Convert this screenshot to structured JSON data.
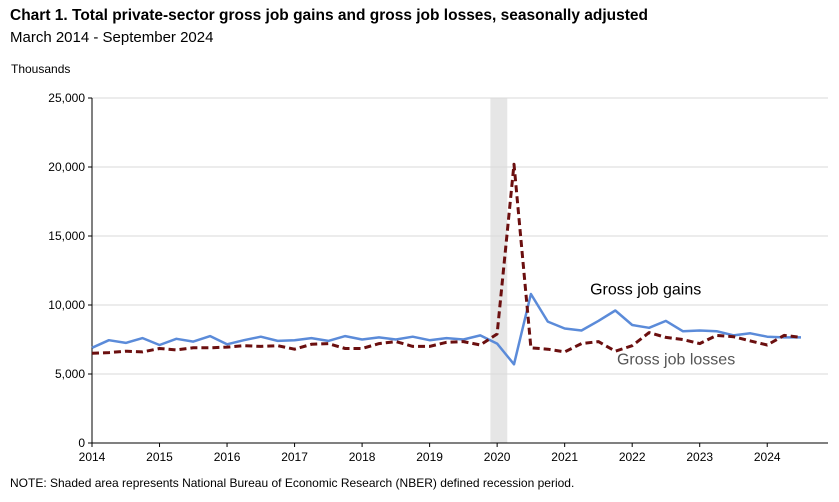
{
  "title": "Chart 1. Total private-sector gross job gains and gross job losses, seasonally adjusted",
  "subtitle": "March 2014 - September 2024",
  "note": "NOTE: Shaded area represents National Bureau of Economic Research (NBER) defined recession period.",
  "chart_data": {
    "type": "line",
    "ylabel": "Thousands",
    "ylim": [
      0,
      25000
    ],
    "yticks": [
      {
        "value": 0,
        "label": "0"
      },
      {
        "value": 5000,
        "label": "5,000"
      },
      {
        "value": 10000,
        "label": "10,000"
      },
      {
        "value": 15000,
        "label": "15,000"
      },
      {
        "value": 20000,
        "label": "20,000"
      },
      {
        "value": 25000,
        "label": "25,000"
      }
    ],
    "xlim": [
      2014.0,
      2024.9
    ],
    "xticks": [
      {
        "value": 2014,
        "label": "2014"
      },
      {
        "value": 2015,
        "label": "2015"
      },
      {
        "value": 2016,
        "label": "2016"
      },
      {
        "value": 2017,
        "label": "2017"
      },
      {
        "value": 2018,
        "label": "2018"
      },
      {
        "value": 2019,
        "label": "2019"
      },
      {
        "value": 2020,
        "label": "2020"
      },
      {
        "value": 2021,
        "label": "2021"
      },
      {
        "value": 2022,
        "label": "2022"
      },
      {
        "value": 2023,
        "label": "2023"
      },
      {
        "value": 2024,
        "label": "2024"
      }
    ],
    "grid": true,
    "recession": {
      "start": 2019.9,
      "end": 2020.15,
      "color": "#e6e6e6"
    },
    "x": [
      2014.0,
      2014.25,
      2014.5,
      2014.75,
      2015.0,
      2015.25,
      2015.5,
      2015.75,
      2016.0,
      2016.25,
      2016.5,
      2016.75,
      2017.0,
      2017.25,
      2017.5,
      2017.75,
      2018.0,
      2018.25,
      2018.5,
      2018.75,
      2019.0,
      2019.25,
      2019.5,
      2019.75,
      2020.0,
      2020.25,
      2020.5,
      2020.75,
      2021.0,
      2021.25,
      2021.5,
      2021.75,
      2022.0,
      2022.25,
      2022.5,
      2022.75,
      2023.0,
      2023.25,
      2023.5,
      2023.75,
      2024.0,
      2024.25,
      2024.5
    ],
    "series": [
      {
        "name": "Gross job gains",
        "color": "#5b8bd9",
        "dash": "solid",
        "values": [
          6900,
          7450,
          7250,
          7600,
          7100,
          7550,
          7350,
          7750,
          7150,
          7450,
          7700,
          7400,
          7450,
          7600,
          7400,
          7750,
          7500,
          7650,
          7500,
          7700,
          7450,
          7600,
          7500,
          7800,
          7200,
          5700,
          10800,
          8800,
          8300,
          8150,
          8850,
          9600,
          8550,
          8350,
          8850,
          8100,
          8150,
          8100,
          7800,
          7950,
          7700,
          7650,
          7650
        ]
      },
      {
        "name": "Gross job losses",
        "color": "#6b0f0f",
        "dash": "dashed",
        "values": [
          6500,
          6550,
          6650,
          6600,
          6850,
          6750,
          6900,
          6900,
          6950,
          7050,
          7000,
          7050,
          6800,
          7150,
          7200,
          6850,
          6850,
          7200,
          7350,
          7000,
          7000,
          7300,
          7350,
          7100,
          7900,
          20200,
          6900,
          6800,
          6600,
          7200,
          7350,
          6650,
          7050,
          8000,
          7650,
          7500,
          7200,
          7800,
          7700,
          7400,
          7100,
          7800,
          7650
        ]
      }
    ],
    "annotations": [
      {
        "text": "Gross job gains",
        "x": 2022.2,
        "y": 10750,
        "color": "#000000"
      },
      {
        "text": "Gross job losses",
        "x": 2022.65,
        "y": 5700,
        "color": "#555555"
      }
    ]
  }
}
